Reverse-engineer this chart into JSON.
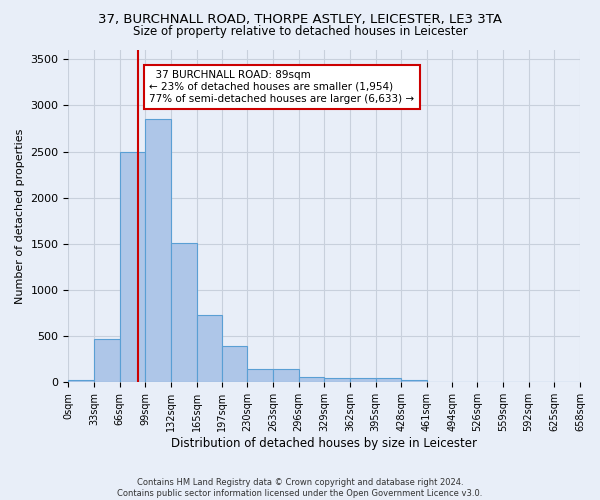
{
  "title_line1": "37, BURCHNALL ROAD, THORPE ASTLEY, LEICESTER, LE3 3TA",
  "title_line2": "Size of property relative to detached houses in Leicester",
  "xlabel": "Distribution of detached houses by size in Leicester",
  "ylabel": "Number of detached properties",
  "bin_edges": [
    0,
    33,
    66,
    99,
    132,
    165,
    197,
    230,
    263,
    296,
    329,
    362,
    395,
    428,
    461,
    494,
    526,
    559,
    592,
    625,
    658
  ],
  "bar_heights": [
    30,
    470,
    2500,
    2850,
    1510,
    730,
    390,
    145,
    145,
    60,
    50,
    45,
    45,
    30,
    0,
    0,
    0,
    0,
    0,
    0
  ],
  "bar_color": "#aec6e8",
  "bar_edge_color": "#5a9fd4",
  "bar_alpha": 1.0,
  "vline_x": 89,
  "vline_color": "#cc0000",
  "annotation_line1": "  37 BURCHNALL ROAD: 89sqm",
  "annotation_line2": "← 23% of detached houses are smaller (1,954)",
  "annotation_line3": "77% of semi-detached houses are larger (6,633) →",
  "annotation_box_color": "#ffffff",
  "annotation_box_edge": "#cc0000",
  "ylim": [
    0,
    3600
  ],
  "yticks": [
    0,
    500,
    1000,
    1500,
    2000,
    2500,
    3000,
    3500
  ],
  "grid_color": "#c8d0dc",
  "bg_color": "#e8eef8",
  "footnote1": "Contains HM Land Registry data © Crown copyright and database right 2024.",
  "footnote2": "Contains public sector information licensed under the Open Government Licence v3.0."
}
